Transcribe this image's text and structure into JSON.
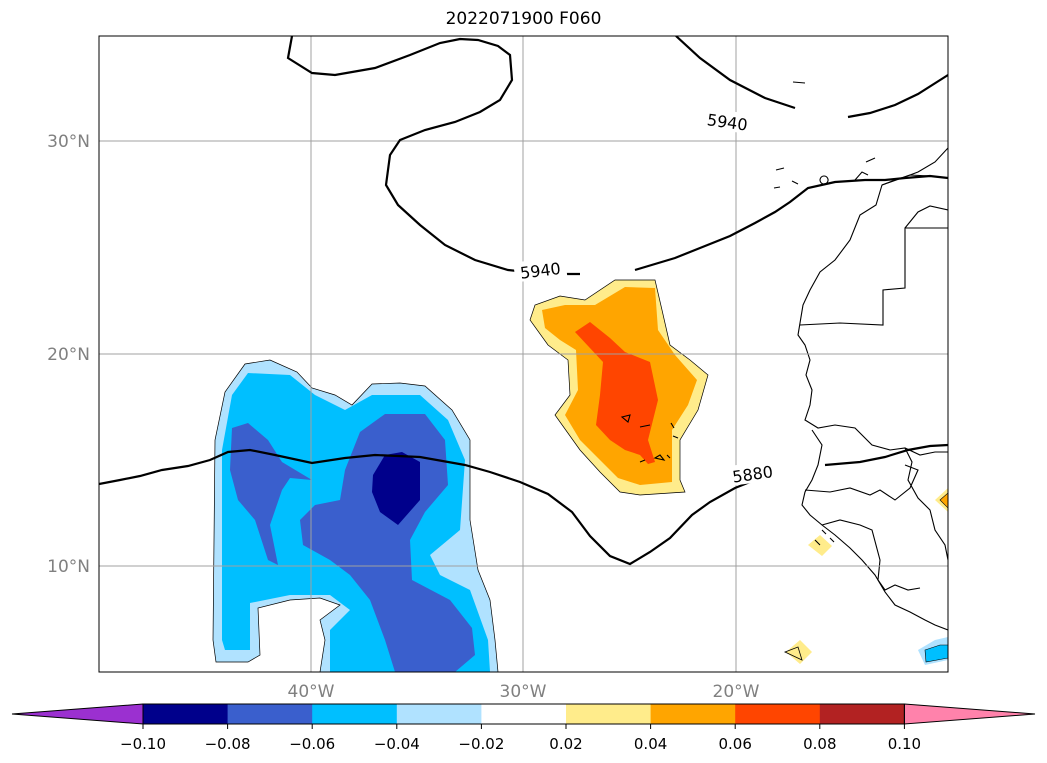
{
  "title": "2022071900 F060",
  "map": {
    "lon_range": [
      -49,
      -9
    ],
    "lat_range": [
      5,
      35
    ],
    "lat_gridlines": [
      {
        "value": 10,
        "label": "10°N"
      },
      {
        "value": 20,
        "label": "20°N"
      },
      {
        "value": 30,
        "label": "30°N"
      }
    ],
    "lon_gridlines": [
      {
        "value": -40,
        "label": "40°W"
      },
      {
        "value": -30,
        "label": "30°W"
      },
      {
        "value": -20,
        "label": "20°W"
      }
    ],
    "height_contours": [
      {
        "value": "5940",
        "label": "5940"
      },
      {
        "value": "5880",
        "label": "5880"
      }
    ],
    "contour_labels": [
      {
        "text": "5940",
        "lon": -19.4,
        "lat": 30.9,
        "angle": 8
      },
      {
        "text": "5940",
        "lon": -28.2,
        "lat": 23.9,
        "angle": -7
      },
      {
        "text": "5880",
        "lon": -18.2,
        "lat": 14.3,
        "angle": -8
      }
    ]
  },
  "colorbar": {
    "colors": [
      "#9b30d0",
      "#00008b",
      "#3a5fcd",
      "#00bfff",
      "#b0e2ff",
      "#ffffff",
      "#ffec8b",
      "#ffa500",
      "#ff4500",
      "#b22222",
      "#ff82ab"
    ],
    "ticks": [
      "−0.10",
      "−0.08",
      "−0.06",
      "−0.04",
      "−0.02",
      "0.02",
      "0.04",
      "0.06",
      "0.08",
      "0.10"
    ]
  }
}
